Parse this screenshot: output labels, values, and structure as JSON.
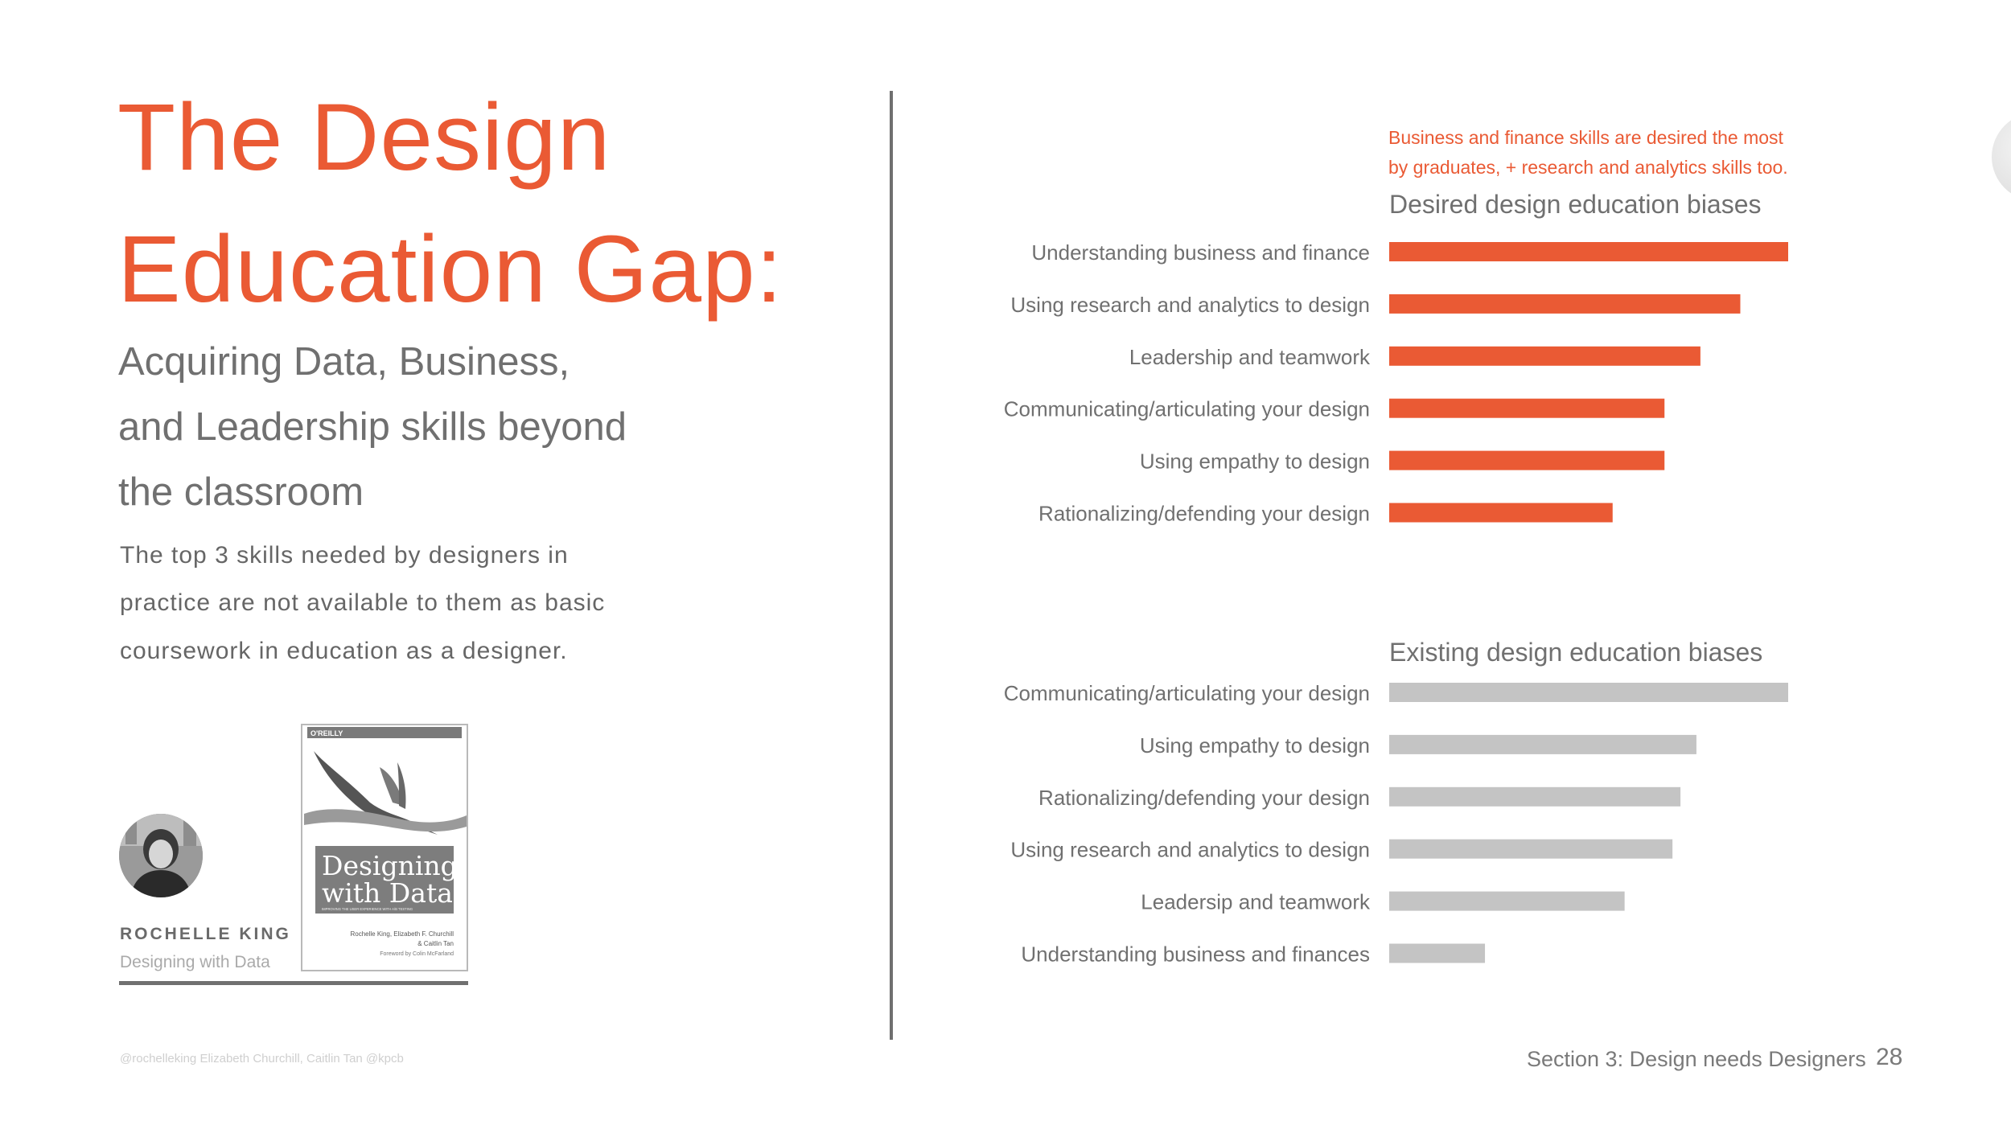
{
  "slide": {
    "title_lines": [
      "The Design",
      "Education Gap:"
    ],
    "subtitle_lines": [
      "Acquiring Data, Business,",
      "and Leadership skills beyond",
      "the classroom"
    ],
    "body_lines": [
      "The top 3 skills needed by designers in",
      "practice are not available to them as basic",
      "coursework in education as a designer."
    ],
    "author": {
      "name": "ROCHELLE KING",
      "book": "Designing with Data"
    },
    "book_cover": {
      "publisher": "O'REILLY",
      "title_lines": [
        "Designing",
        "with Data"
      ],
      "subtitle": "IMPROVING THE USER EXPERIENCE WITH A/B TESTING",
      "authors_lines": [
        "Rochelle King, Elizabeth F. Churchill",
        "& Caitlin Tan"
      ],
      "foreword": "Foreword by Colin McFarland"
    },
    "footer_credit": "@rochelleking Elizabeth Churchill, Caitlin Tan @kpcb",
    "section_label": "Section 3: Design needs Designers",
    "page_number": "28",
    "annotation_lines": [
      "Business and finance skills are desired the most",
      "by graduates, + research and analytics skills too."
    ],
    "colors": {
      "accent": "#ea5a34",
      "grey_bar": "#c4c4c4",
      "text_grey": "#707070"
    }
  },
  "chart_data": [
    {
      "type": "bar",
      "orientation": "horizontal",
      "title": "Desired design education biases",
      "categories": [
        "Understanding business and finance",
        "Using research and analytics to design",
        "Leadership and teamwork",
        "Communicating/articulating your design",
        "Using empathy to design",
        "Rationalizing/defending your design"
      ],
      "values": [
        100,
        88,
        78,
        69,
        69,
        56
      ],
      "color": "#ea5a34",
      "xlim": [
        0,
        100
      ],
      "axes_shown": false,
      "grid": false
    },
    {
      "type": "bar",
      "orientation": "horizontal",
      "title": "Existing design education biases",
      "categories": [
        "Communicating/articulating your design",
        "Using empathy to design",
        "Rationalizing/defending your design",
        "Using research and analytics to design",
        "Leadersip and teamwork",
        "Understanding business and finances"
      ],
      "values": [
        100,
        77,
        73,
        71,
        59,
        24
      ],
      "color": "#c4c4c4",
      "xlim": [
        0,
        100
      ],
      "axes_shown": false,
      "grid": false
    }
  ]
}
